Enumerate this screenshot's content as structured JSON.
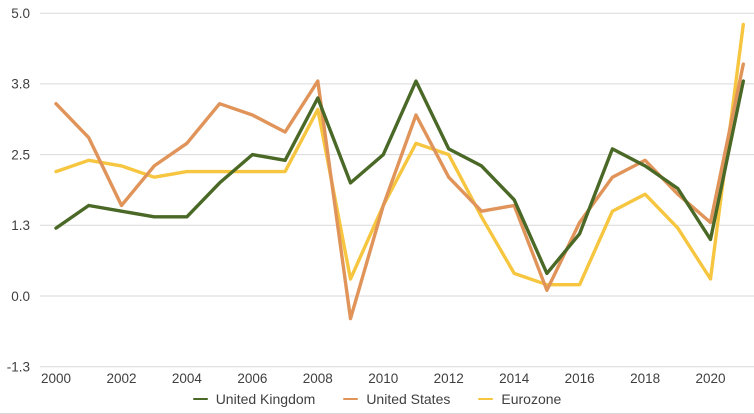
{
  "chart_data": {
    "type": "line",
    "x": [
      2000,
      2001,
      2002,
      2003,
      2004,
      2005,
      2006,
      2007,
      2008,
      2009,
      2010,
      2011,
      2012,
      2013,
      2014,
      2015,
      2016,
      2017,
      2018,
      2019,
      2020,
      2021
    ],
    "series": [
      {
        "name": "United Kingdom",
        "color": "#4a6826",
        "values": [
          1.2,
          1.6,
          1.5,
          1.4,
          1.4,
          2.0,
          2.5,
          2.4,
          3.5,
          2.0,
          2.5,
          3.8,
          2.6,
          2.3,
          1.7,
          0.4,
          1.1,
          2.6,
          2.3,
          1.9,
          1.0,
          3.8
        ]
      },
      {
        "name": "United States",
        "color": "#e0945a",
        "values": [
          3.4,
          2.8,
          1.6,
          2.3,
          2.7,
          3.4,
          3.2,
          2.9,
          3.8,
          -0.4,
          1.6,
          3.2,
          2.1,
          1.5,
          1.6,
          0.1,
          1.3,
          2.1,
          2.4,
          1.8,
          1.3,
          4.1
        ]
      },
      {
        "name": "Eurozone",
        "color": "#f7c640",
        "values": [
          2.2,
          2.4,
          2.3,
          2.1,
          2.2,
          2.2,
          2.2,
          2.2,
          3.3,
          0.3,
          1.6,
          2.7,
          2.5,
          1.4,
          0.4,
          0.2,
          0.2,
          1.5,
          1.8,
          1.2,
          0.3,
          4.8
        ]
      }
    ],
    "draw_order": [
      "Eurozone",
      "United States",
      "United Kingdom"
    ],
    "y_ticks": {
      "values": [
        5.0,
        3.75,
        2.5,
        1.25,
        0,
        -1.25
      ],
      "labels": [
        "5.0",
        "3.8",
        "2.5",
        "1.3",
        "0.0",
        "-1.3"
      ]
    },
    "x_tick_labels": [
      "2000",
      "2002",
      "2004",
      "2006",
      "2008",
      "2010",
      "2012",
      "2014",
      "2016",
      "2018",
      "2020"
    ],
    "title": "",
    "xlabel": "",
    "ylabel": "",
    "ylim": [
      -1.25,
      5.0
    ],
    "grid": "horizontal",
    "legend_position": "bottom",
    "colors": {
      "gridline": "#d9d9d9",
      "axis_text": "#404040",
      "background": "#ffffff"
    }
  },
  "legend": {
    "items": [
      {
        "label": "United Kingdom"
      },
      {
        "label": "United States"
      },
      {
        "label": "Eurozone"
      }
    ]
  }
}
